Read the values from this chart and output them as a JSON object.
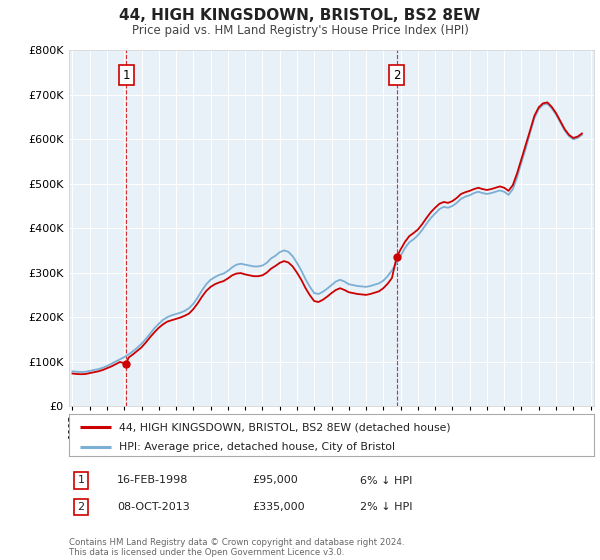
{
  "title": "44, HIGH KINGSDOWN, BRISTOL, BS2 8EW",
  "subtitle": "Price paid vs. HM Land Registry's House Price Index (HPI)",
  "x_start_year": 1995,
  "x_end_year": 2025,
  "y_min": 0,
  "y_max": 800000,
  "y_ticks": [
    0,
    100000,
    200000,
    300000,
    400000,
    500000,
    600000,
    700000,
    800000
  ],
  "sale1_year": 1998.12,
  "sale1_price": 95000,
  "sale1_label": "1",
  "sale1_date": "16-FEB-1998",
  "sale1_text": "6% ↓ HPI",
  "sale2_year": 2013.77,
  "sale2_price": 335000,
  "sale2_label": "2",
  "sale2_date": "08-OCT-2013",
  "sale2_text": "2% ↓ HPI",
  "line_color_red": "#cc0000",
  "line_color_blue": "#7bafd4",
  "annotation_box_color": "#cc0000",
  "background_color": "#ffffff",
  "plot_bg_color": "#e8f0f8",
  "grid_color": "#ffffff",
  "legend_label_red": "44, HIGH KINGSDOWN, BRISTOL, BS2 8EW (detached house)",
  "legend_label_blue": "HPI: Average price, detached house, City of Bristol",
  "footer": "Contains HM Land Registry data © Crown copyright and database right 2024.\nThis data is licensed under the Open Government Licence v3.0.",
  "hpi_data_x": [
    1995.0,
    1995.25,
    1995.5,
    1995.75,
    1996.0,
    1996.25,
    1996.5,
    1996.75,
    1997.0,
    1997.25,
    1997.5,
    1997.75,
    1998.0,
    1998.25,
    1998.5,
    1998.75,
    1999.0,
    1999.25,
    1999.5,
    1999.75,
    2000.0,
    2000.25,
    2000.5,
    2000.75,
    2001.0,
    2001.25,
    2001.5,
    2001.75,
    2002.0,
    2002.25,
    2002.5,
    2002.75,
    2003.0,
    2003.25,
    2003.5,
    2003.75,
    2004.0,
    2004.25,
    2004.5,
    2004.75,
    2005.0,
    2005.25,
    2005.5,
    2005.75,
    2006.0,
    2006.25,
    2006.5,
    2006.75,
    2007.0,
    2007.25,
    2007.5,
    2007.75,
    2008.0,
    2008.25,
    2008.5,
    2008.75,
    2009.0,
    2009.25,
    2009.5,
    2009.75,
    2010.0,
    2010.25,
    2010.5,
    2010.75,
    2011.0,
    2011.25,
    2011.5,
    2011.75,
    2012.0,
    2012.25,
    2012.5,
    2012.75,
    2013.0,
    2013.25,
    2013.5,
    2013.75,
    2014.0,
    2014.25,
    2014.5,
    2014.75,
    2015.0,
    2015.25,
    2015.5,
    2015.75,
    2016.0,
    2016.25,
    2016.5,
    2016.75,
    2017.0,
    2017.25,
    2017.5,
    2017.75,
    2018.0,
    2018.25,
    2018.5,
    2018.75,
    2019.0,
    2019.25,
    2019.5,
    2019.75,
    2020.0,
    2020.25,
    2020.5,
    2020.75,
    2021.0,
    2021.25,
    2021.5,
    2021.75,
    2022.0,
    2022.25,
    2022.5,
    2022.75,
    2023.0,
    2023.25,
    2023.5,
    2023.75,
    2024.0,
    2024.25,
    2024.5
  ],
  "hpi_data_y": [
    78000,
    77000,
    76500,
    77000,
    79000,
    81000,
    83000,
    86000,
    90000,
    95000,
    100000,
    105000,
    110000,
    116000,
    123000,
    131000,
    140000,
    151000,
    163000,
    175000,
    185000,
    194000,
    200000,
    204000,
    207000,
    210000,
    214000,
    220000,
    230000,
    244000,
    260000,
    274000,
    284000,
    290000,
    295000,
    298000,
    304000,
    312000,
    318000,
    320000,
    318000,
    316000,
    314000,
    314000,
    316000,
    322000,
    332000,
    338000,
    346000,
    350000,
    347000,
    337000,
    322000,
    305000,
    285000,
    268000,
    254000,
    252000,
    257000,
    264000,
    272000,
    280000,
    284000,
    280000,
    274000,
    272000,
    270000,
    269000,
    268000,
    270000,
    273000,
    276000,
    282000,
    292000,
    305000,
    320000,
    338000,
    355000,
    368000,
    375000,
    384000,
    396000,
    410000,
    423000,
    433000,
    443000,
    448000,
    446000,
    450000,
    457000,
    466000,
    471000,
    474000,
    479000,
    482000,
    479000,
    477000,
    479000,
    482000,
    485000,
    482000,
    475000,
    488000,
    515000,
    548000,
    580000,
    615000,
    648000,
    668000,
    678000,
    680000,
    670000,
    656000,
    638000,
    620000,
    607000,
    600000,
    603000,
    610000
  ],
  "price_line_x": [
    1995.0,
    1995.25,
    1995.5,
    1995.75,
    1996.0,
    1996.25,
    1996.5,
    1996.75,
    1997.0,
    1997.25,
    1997.5,
    1997.75,
    1998.12,
    1998.25,
    1998.5,
    1998.75,
    1999.0,
    1999.25,
    1999.5,
    1999.75,
    2000.0,
    2000.25,
    2000.5,
    2000.75,
    2001.0,
    2001.25,
    2001.5,
    2001.75,
    2002.0,
    2002.25,
    2002.5,
    2002.75,
    2003.0,
    2003.25,
    2003.5,
    2003.75,
    2004.0,
    2004.25,
    2004.5,
    2004.75,
    2005.0,
    2005.25,
    2005.5,
    2005.75,
    2006.0,
    2006.25,
    2006.5,
    2006.75,
    2007.0,
    2007.25,
    2007.5,
    2007.75,
    2008.0,
    2008.25,
    2008.5,
    2008.75,
    2009.0,
    2009.25,
    2009.5,
    2009.75,
    2010.0,
    2010.25,
    2010.5,
    2010.75,
    2011.0,
    2011.25,
    2011.5,
    2011.75,
    2012.0,
    2012.25,
    2012.5,
    2012.75,
    2013.0,
    2013.25,
    2013.5,
    2013.77,
    2014.0,
    2014.25,
    2014.5,
    2014.75,
    2015.0,
    2015.25,
    2015.5,
    2015.75,
    2016.0,
    2016.25,
    2016.5,
    2016.75,
    2017.0,
    2017.25,
    2017.5,
    2017.75,
    2018.0,
    2018.25,
    2018.5,
    2018.75,
    2019.0,
    2019.25,
    2019.5,
    2019.75,
    2020.0,
    2020.25,
    2020.5,
    2020.75,
    2021.0,
    2021.25,
    2021.5,
    2021.75,
    2022.0,
    2022.25,
    2022.5,
    2022.75,
    2023.0,
    2023.25,
    2023.5,
    2023.75,
    2024.0,
    2024.25,
    2024.5
  ],
  "price_line_y": [
    73000,
    72000,
    71500,
    72000,
    74000,
    76000,
    78000,
    81000,
    85000,
    89000,
    94000,
    99000,
    95000,
    109000,
    116000,
    124000,
    132000,
    143000,
    155000,
    166000,
    176000,
    184000,
    190000,
    193000,
    196000,
    199000,
    203000,
    208000,
    218000,
    231000,
    246000,
    259000,
    268000,
    274000,
    278000,
    281000,
    287000,
    294000,
    298000,
    299000,
    296000,
    294000,
    292000,
    292000,
    294000,
    300000,
    309000,
    315000,
    322000,
    326000,
    323000,
    314000,
    300000,
    284000,
    265000,
    249000,
    236000,
    234000,
    239000,
    246000,
    254000,
    261000,
    265000,
    261000,
    256000,
    254000,
    252000,
    251000,
    250000,
    252000,
    255000,
    258000,
    265000,
    275000,
    288000,
    335000,
    352000,
    369000,
    382000,
    389000,
    397000,
    409000,
    423000,
    436000,
    446000,
    455000,
    459000,
    457000,
    461000,
    468000,
    477000,
    481000,
    484000,
    488000,
    491000,
    488000,
    486000,
    488000,
    491000,
    494000,
    491000,
    484000,
    497000,
    524000,
    556000,
    588000,
    620000,
    653000,
    672000,
    681000,
    683000,
    673000,
    659000,
    641000,
    623000,
    610000,
    603000,
    606000,
    613000
  ]
}
